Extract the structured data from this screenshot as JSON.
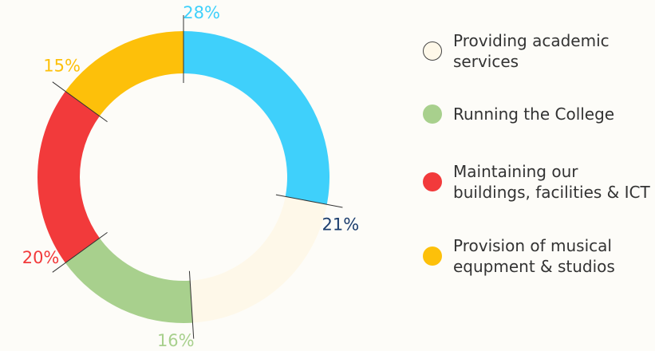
{
  "chart_data": {
    "type": "donut",
    "categories": [
      null,
      "Providing academic\nservices",
      "Running the College",
      "Maintaining our\nbuildings, facilities & ICT",
      "Provision of musical\nequpment & studios"
    ],
    "values": [
      28,
      21,
      16,
      20,
      15
    ],
    "value_labels": [
      "28%",
      "21%",
      "16%",
      "20%",
      "15%"
    ],
    "colors": [
      "#3fd0fb",
      "#fef8e9",
      "#a8d08d",
      "#f23a3b",
      "#fdc00a"
    ],
    "label_colors": [
      "#3fd0fb",
      "#1c3e6e",
      "#a8d08d",
      "#f23a3b",
      "#fdc00a"
    ]
  }
}
